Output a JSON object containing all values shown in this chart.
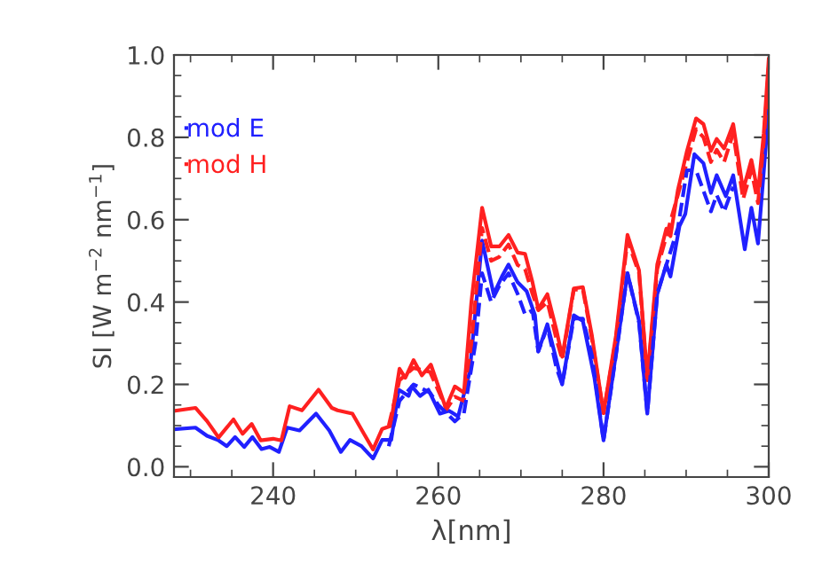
{
  "chart_data": {
    "type": "line",
    "xlabel": "λ[nm]",
    "ylabel": "SI [W m$^{−2}$ nm$^{−1}$]",
    "xlim": [
      228,
      300
    ],
    "ylim": [
      -0.025,
      1.0
    ],
    "xticks": [
      240,
      260,
      280,
      300
    ],
    "yticks": [
      {
        "value": 0.0,
        "label": "0.0"
      },
      {
        "value": 0.2,
        "label": "0.2"
      },
      {
        "value": 0.4,
        "label": "0.4"
      },
      {
        "value": 0.6,
        "label": "0.6"
      },
      {
        "value": 0.8,
        "label": "0.8"
      },
      {
        "value": 1.0,
        "label": "1.0"
      }
    ],
    "legend": "top left",
    "grid": false,
    "series": [
      {
        "name": "mod E",
        "color": "#2020ff",
        "line_style": "solid",
        "x": [
          228.1,
          230.6,
          232.0,
          233.4,
          234.4,
          235.4,
          236.5,
          237.5,
          238.6,
          239.6,
          240.7,
          241.7,
          243.2,
          245.2,
          246.8,
          248.2,
          249.3,
          250.7,
          252.1,
          253.2,
          254.3,
          255.2,
          256.4,
          256.8,
          257.8,
          258.8,
          260.2,
          261.3,
          262.4,
          263.8,
          265.3,
          266.7,
          267.7,
          268.5,
          269.6,
          270.7,
          271.7,
          272.1,
          273.2,
          274.3,
          275.0,
          276.4,
          277.5,
          278.9,
          280.0,
          281.5,
          282.9,
          284.3,
          285.3,
          286.5,
          287.6,
          288.1,
          289.2,
          289.9,
          291.0,
          292.1,
          293.0,
          293.7,
          294.8,
          295.7,
          297.1,
          297.9,
          298.7,
          300.0
        ],
        "values": [
          0.091,
          0.095,
          0.075,
          0.064,
          0.05,
          0.072,
          0.048,
          0.072,
          0.043,
          0.048,
          0.036,
          0.095,
          0.088,
          0.129,
          0.088,
          0.036,
          0.065,
          0.05,
          0.02,
          0.065,
          0.065,
          0.187,
          0.172,
          0.195,
          0.172,
          0.187,
          0.129,
          0.136,
          0.122,
          0.23,
          0.549,
          0.419,
          0.462,
          0.491,
          0.448,
          0.426,
          0.368,
          0.28,
          0.346,
          0.259,
          0.201,
          0.368,
          0.354,
          0.216,
          0.064,
          0.274,
          0.47,
          0.354,
          0.129,
          0.419,
          0.491,
          0.462,
          0.585,
          0.614,
          0.759,
          0.737,
          0.665,
          0.708,
          0.657,
          0.708,
          0.528,
          0.629,
          0.542,
          0.868
        ]
      },
      {
        "name": "mod H",
        "color": "#ff2020",
        "line_style": "solid",
        "x": [
          228.1,
          230.6,
          232.0,
          233.4,
          235.2,
          236.3,
          237.4,
          238.5,
          240.0,
          241.0,
          242.0,
          243.5,
          245.5,
          247.1,
          247.8,
          249.6,
          251.0,
          252.1,
          253.2,
          254.2,
          255.3,
          256.0,
          257.0,
          258.0,
          259.1,
          260.9,
          262.0,
          263.1,
          264.0,
          265.3,
          266.4,
          267.4,
          268.5,
          269.6,
          270.5,
          271.4,
          272.1,
          273.2,
          274.3,
          275.0,
          276.4,
          277.5,
          278.6,
          280.0,
          281.5,
          282.9,
          284.3,
          285.3,
          286.5,
          287.6,
          288.1,
          289.0,
          290.1,
          291.2,
          292.1,
          293.0,
          293.7,
          294.6,
          295.7,
          296.9,
          297.9,
          298.7,
          299.4,
          300.0
        ],
        "values": [
          0.136,
          0.143,
          0.111,
          0.071,
          0.115,
          0.08,
          0.104,
          0.064,
          0.068,
          0.064,
          0.147,
          0.137,
          0.187,
          0.143,
          0.137,
          0.129,
          0.08,
          0.042,
          0.092,
          0.099,
          0.238,
          0.216,
          0.259,
          0.222,
          0.248,
          0.143,
          0.195,
          0.18,
          0.4,
          0.629,
          0.535,
          0.535,
          0.563,
          0.52,
          0.517,
          0.448,
          0.383,
          0.419,
          0.332,
          0.267,
          0.433,
          0.436,
          0.318,
          0.13,
          0.318,
          0.563,
          0.477,
          0.216,
          0.491,
          0.578,
          0.56,
          0.672,
          0.767,
          0.846,
          0.832,
          0.767,
          0.796,
          0.773,
          0.832,
          0.672,
          0.745,
          0.665,
          0.81,
          0.99
        ]
      },
      {
        "color": "#ff2020",
        "line_style": "dashed",
        "x": [
          254.0,
          255.3,
          257.0,
          259.0,
          261.0,
          262.0,
          263.1,
          264.0,
          265.3,
          266.4,
          267.4,
          268.5,
          269.6,
          270.5,
          271.4,
          272.1,
          273.2,
          274.3,
          275.0,
          276.4,
          277.5,
          278.6,
          280.0,
          281.5,
          282.9,
          284.3,
          285.3,
          286.5,
          287.6,
          289.0,
          290.1,
          291.2,
          292.1,
          293.0,
          293.7,
          294.6,
          295.7,
          296.9,
          297.9,
          298.7,
          299.4,
          300.0
        ],
        "values": [
          0.1,
          0.21,
          0.24,
          0.23,
          0.14,
          0.17,
          0.16,
          0.3,
          0.58,
          0.5,
          0.51,
          0.54,
          0.49,
          0.48,
          0.42,
          0.38,
          0.4,
          0.31,
          0.26,
          0.43,
          0.43,
          0.31,
          0.13,
          0.31,
          0.55,
          0.47,
          0.21,
          0.48,
          0.56,
          0.66,
          0.74,
          0.82,
          0.8,
          0.74,
          0.77,
          0.74,
          0.81,
          0.65,
          0.72,
          0.64,
          0.79,
          0.97
        ]
      },
      {
        "color": "#2020ff",
        "line_style": "dashed",
        "x": [
          254.0,
          255.3,
          257.0,
          259.0,
          260.0,
          261.0,
          262.0,
          263.1,
          264.5,
          265.3,
          266.4,
          267.4,
          268.5,
          269.6,
          270.5,
          271.4,
          272.1,
          273.2,
          274.3,
          275.0,
          276.4,
          277.5,
          278.6,
          280.0,
          281.5,
          282.9,
          284.3,
          285.3,
          286.5,
          287.6,
          289.0,
          290.1,
          291.2,
          292.1,
          293.0,
          293.7,
          294.6,
          295.7
        ],
        "values": [
          0.05,
          0.16,
          0.2,
          0.18,
          0.15,
          0.13,
          0.11,
          0.13,
          0.3,
          0.47,
          0.4,
          0.44,
          0.47,
          0.42,
          0.37,
          0.38,
          0.28,
          0.34,
          0.24,
          0.2,
          0.36,
          0.36,
          0.27,
          0.064,
          0.27,
          0.47,
          0.35,
          0.13,
          0.42,
          0.49,
          0.58,
          0.72,
          0.72,
          0.67,
          0.62,
          0.66,
          0.62,
          0.68
        ]
      }
    ]
  }
}
